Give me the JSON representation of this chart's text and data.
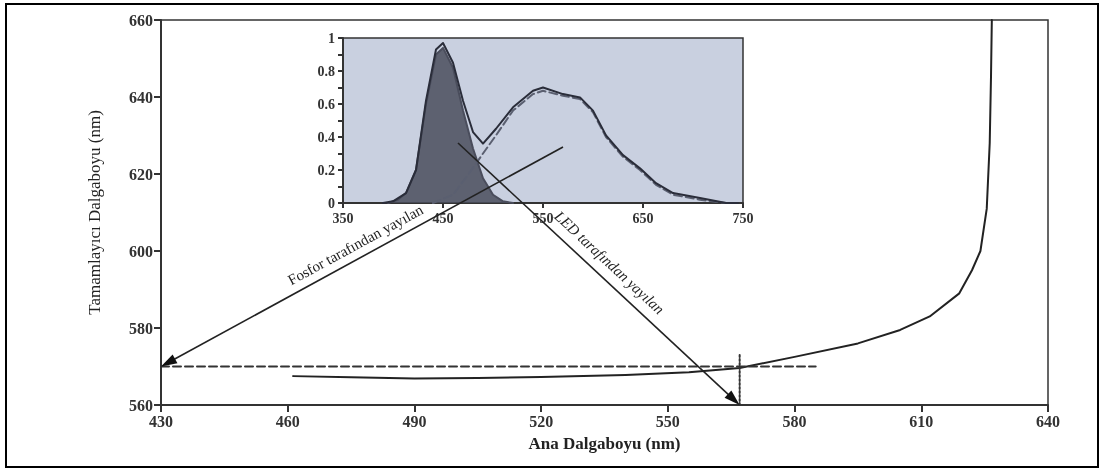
{
  "chart_data": [
    {
      "type": "line",
      "xlabel": "Ana Dalgaboyu (nm)",
      "ylabel": "Tamamlayıcı Dalgaboyu (nm)",
      "xlim": [
        430,
        640
      ],
      "ylim": [
        560,
        660
      ],
      "xticks": [
        430,
        460,
        490,
        520,
        550,
        580,
        610,
        640
      ],
      "yticks": [
        560,
        580,
        600,
        620,
        640,
        660
      ],
      "grid": false,
      "marker": "none",
      "annotations": [
        "Fosfor tarafından yayılan",
        "LED tarafından yayılan"
      ],
      "series": [
        {
          "color": "#222222",
          "x": [
            461.3,
            475,
            490,
            505,
            520,
            540,
            555,
            567,
            580,
            595,
            605,
            612,
            619,
            622,
            624,
            625.5,
            626.2,
            626.5,
            626.7
          ],
          "values": [
            567.5,
            567.2,
            566.9,
            567,
            567.3,
            567.8,
            568.5,
            569.6,
            572.5,
            576,
            579.5,
            583,
            589,
            595,
            600,
            611,
            628,
            645,
            660
          ]
        },
        {
          "color": "#333333",
          "x": [
            430,
            585
          ],
          "values": [
            570,
            570
          ],
          "line_style": "dashed"
        },
        {
          "color": "#333333",
          "x": [
            567,
            567
          ],
          "values": [
            560,
            573
          ],
          "line_style": "dotted"
        }
      ]
    },
    {
      "type": "line",
      "xlim": [
        350,
        750
      ],
      "ylim": [
        0,
        1
      ],
      "xticks": [
        350,
        450,
        550,
        650,
        750
      ],
      "yticks": [
        0,
        {
          "value": 0.1,
          "label": null
        },
        0.2,
        {
          "value": 0.3,
          "label": null
        },
        0.4,
        {
          "value": 0.5,
          "label": null
        },
        0.6,
        {
          "value": 0.7,
          "label": null
        },
        0.8,
        {
          "value": 0.9,
          "label": null
        },
        1
      ],
      "grid": false,
      "marker": "none",
      "series": [
        {
          "type": "area",
          "color": "#4a4d5c",
          "x": [
            395,
            405,
            413,
            423,
            433,
            443,
            450,
            460,
            470,
            480,
            490,
            500,
            510,
            520
          ],
          "values": [
            0,
            0.02,
            0.06,
            0.2,
            0.6,
            0.9,
            0.94,
            0.82,
            0.56,
            0.33,
            0.15,
            0.05,
            0.01,
            0
          ]
        },
        {
          "color": "#5a5f70",
          "line_style": "dashed",
          "x": [
            440,
            460,
            475,
            490,
            503,
            520,
            540,
            550,
            570,
            587,
            600,
            613,
            630,
            647,
            663,
            680,
            707,
            733
          ],
          "values": [
            0,
            0.05,
            0.17,
            0.3,
            0.41,
            0.56,
            0.66,
            0.68,
            0.65,
            0.63,
            0.55,
            0.4,
            0.28,
            0.2,
            0.11,
            0.05,
            0.02,
            0
          ]
        },
        {
          "color": "#2a2d3a",
          "x": [
            390,
            400,
            413,
            423,
            433,
            443,
            450,
            460,
            470,
            480,
            490,
            503,
            520,
            540,
            550,
            570,
            587,
            600,
            613,
            630,
            647,
            663,
            680,
            707,
            733,
            745
          ],
          "values": [
            0,
            0.01,
            0.06,
            0.2,
            0.62,
            0.93,
            0.97,
            0.85,
            0.62,
            0.43,
            0.36,
            0.45,
            0.58,
            0.68,
            0.7,
            0.66,
            0.64,
            0.56,
            0.41,
            0.29,
            0.21,
            0.12,
            0.06,
            0.03,
            0,
            0
          ]
        }
      ]
    }
  ]
}
